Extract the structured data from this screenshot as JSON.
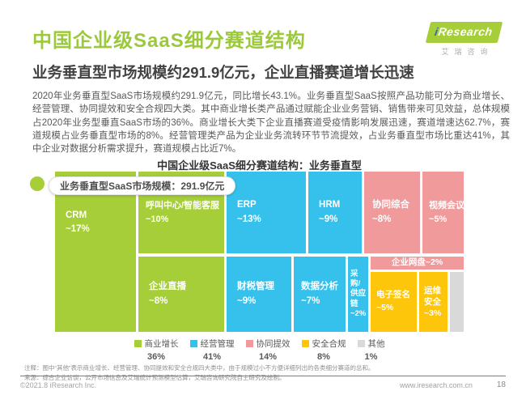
{
  "header": {
    "title": "中国企业级SaaS细分赛道结构",
    "subtitle": "业务垂直型市场规模约291.9亿元，企业直播赛道增长迅速",
    "logo": {
      "brand_i": "i",
      "brand_rest": "Research",
      "brand_cn": "艾瑞咨询"
    }
  },
  "body_paragraph": "2020年业务垂直型SaaS市场规模约291.9亿元，同比增长43.1%。业务垂直型SaaS按照产品功能可分为商业增长、经营管理、协同提效和安全合规四大类。其中商业增长类产品通过赋能企业业务营销、销售带来可见效益，总体规模占2020年业务型垂直SaaS市场的36%。商业增长大类下企业直播赛道受疫情影响发展迅速，赛道增速达62.7%，赛道规模占业务垂直型市场的8%。经营管理类产品为企业业务流转环节节流提效，占业务垂直型市场比重达41%，其中企业对数据分析需求提升，赛道规模占比近7%。",
  "chart_data": {
    "type": "treemap",
    "title": "中国企业级SaaS细分赛道结构：业务垂直型",
    "badge_label": "业务垂直型SaaS市场规模：291.9亿元",
    "legend_position": "bottom",
    "groups": [
      {
        "name": "商业增长",
        "share": "36%",
        "color": "#a5ce39"
      },
      {
        "name": "经营管理",
        "share": "41%",
        "color": "#35c1ec"
      },
      {
        "name": "协同提效",
        "share": "14%",
        "color": "#f09a9c"
      },
      {
        "name": "安全合规",
        "share": "8%",
        "color": "#fdc60a"
      },
      {
        "name": "其他",
        "share": "1%",
        "color": "#d9d9d9"
      }
    ],
    "segments": [
      {
        "label": "CRM",
        "value": "~17%",
        "group": "商业增长"
      },
      {
        "label": "呼叫中心/智能客服",
        "value": "~10%",
        "group": "商业增长"
      },
      {
        "label": "ERP",
        "value": "~13%",
        "group": "经营管理"
      },
      {
        "label": "HRM",
        "value": "~9%",
        "group": "经营管理"
      },
      {
        "label": "协同综合",
        "value": "~8%",
        "group": "协同提效"
      },
      {
        "label": "视频会议",
        "value": "~5%",
        "group": "协同提效"
      },
      {
        "label": "企业直播",
        "value": "~8%",
        "group": "商业增长"
      },
      {
        "label": "财税管理",
        "value": "~9%",
        "group": "经营管理"
      },
      {
        "label": "数据分析",
        "value": "~7%",
        "group": "经营管理"
      },
      {
        "label": "采购/供应链",
        "value": "~2%",
        "group": "经营管理"
      },
      {
        "label": "企业网盘",
        "value": "~2%",
        "group": "协同提效"
      },
      {
        "label": "电子签名",
        "value": "~5%",
        "group": "安全合规"
      },
      {
        "label": "运维安全",
        "value": "~3%",
        "group": "安全合规"
      }
    ]
  },
  "notes": {
    "note1": "注释：图中“其他”表示商业增长、经营管理、协同提效和安全合规四大类中，由于规模过小不方便详细列出的各类细分赛道的总和。",
    "note2": "来源：综合企业访谈，公开市场信息及艾瑞统计预测模型估算，艾瑞咨询研究院自主研究及绘制。"
  },
  "footer": {
    "copyright": "©2021.8 iResearch Inc.",
    "website": "www.iresearch.com.cn",
    "page": "18"
  }
}
